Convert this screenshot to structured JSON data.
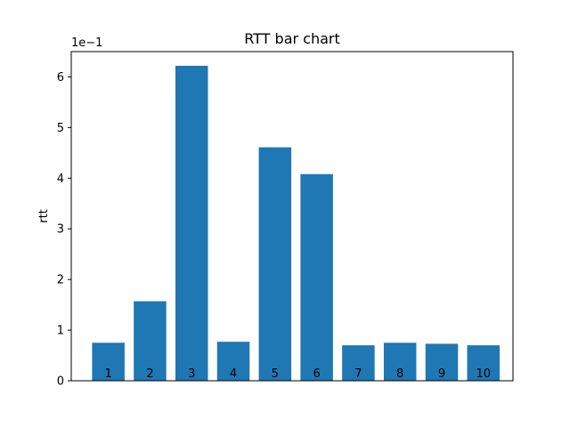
{
  "chart_data": {
    "type": "bar",
    "title": "RTT bar chart",
    "xlabel": "",
    "ylabel": "rtt",
    "y_scale_multiplier": "1e−1",
    "categories": [
      "1",
      "2",
      "3",
      "4",
      "5",
      "6",
      "7",
      "8",
      "9",
      "10"
    ],
    "values": [
      0.75,
      1.57,
      6.22,
      0.77,
      4.61,
      4.08,
      0.7,
      0.75,
      0.73,
      0.7
    ],
    "ylim": [
      0,
      6.5
    ],
    "yticks": [
      "0",
      "1",
      "2",
      "3",
      "4",
      "5",
      "6"
    ],
    "bar_color": "#1f77b4",
    "grid": false,
    "legend": "none"
  }
}
